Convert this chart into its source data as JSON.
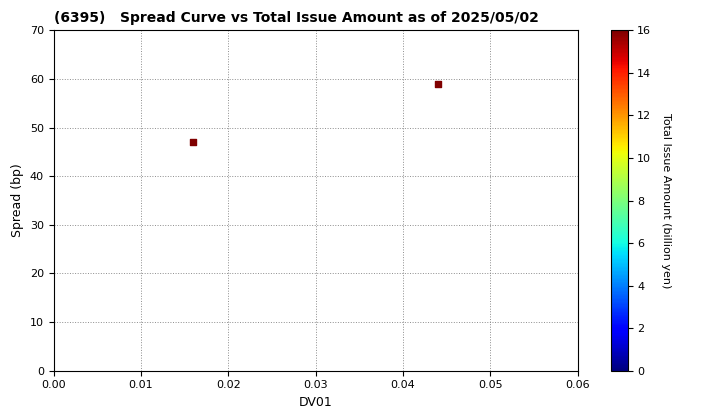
{
  "title": "(6395)   Spread Curve vs Total Issue Amount as of 2025/05/02",
  "xlabel": "DV01",
  "ylabel": "Spread (bp)",
  "scatter_x": [
    0.016,
    0.044
  ],
  "scatter_y": [
    47,
    59
  ],
  "scatter_colors": [
    16,
    16
  ],
  "colorbar_label": "Total Issue Amount (billion yen)",
  "colorbar_min": 0,
  "colorbar_max": 16,
  "xlim": [
    0.0,
    0.06
  ],
  "ylim": [
    0,
    70
  ],
  "xticks": [
    0.0,
    0.01,
    0.02,
    0.03,
    0.04,
    0.05,
    0.06
  ],
  "yticks": [
    0,
    10,
    20,
    30,
    40,
    50,
    60,
    70
  ],
  "background_color": "#ffffff",
  "marker_size": 20
}
